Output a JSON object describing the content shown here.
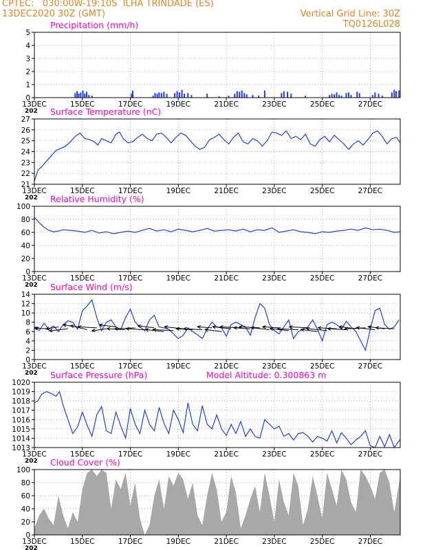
{
  "header": {
    "line1_left": "CPTEC:   030:00W-19:10S  ILHA TRINDADE (ES)",
    "line2_left": "13DEC2020 30Z (GMT)",
    "line1_right": "Vertical Grid Line: 30Z",
    "line2_right": "TQ0126L028"
  },
  "x_axis": {
    "ticks": [
      "13DEC",
      "15DEC",
      "17DEC",
      "19DEC",
      "21DEC",
      "23DEC",
      "25DEC",
      "27DEC"
    ],
    "year_label": "202",
    "range_days": [
      0,
      15.25
    ]
  },
  "colors": {
    "title": "#ff00c8",
    "header": "#e8821e",
    "series": "#1e3cff",
    "wind_arrow": "#000000",
    "cloud": "#a8a8a8"
  },
  "chart_data": [
    {
      "id": "precipitation",
      "type": "bar",
      "title": "Precipitation (mm/h)",
      "ylim": [
        0,
        5
      ],
      "yticks": [
        0,
        1,
        2,
        3,
        4,
        5
      ],
      "x": [
        1.7,
        1.78,
        1.85,
        1.93,
        2.02,
        2.1,
        2.18,
        2.27,
        2.4,
        4.05,
        4.1,
        4.95,
        5.03,
        5.12,
        5.2,
        5.3,
        5.4,
        5.52,
        5.85,
        5.95,
        6.05,
        6.15,
        6.25,
        6.4,
        6.55,
        7.2,
        7.7,
        8.1,
        8.35,
        8.45,
        8.55,
        8.65,
        8.75,
        8.85,
        9.1,
        9.35,
        9.6,
        10.3,
        10.4,
        10.55,
        10.7,
        11.3,
        12.3,
        12.4,
        12.5,
        12.6,
        12.7,
        12.8,
        13.0,
        13.1,
        13.2,
        13.45,
        13.55,
        14.1,
        14.2,
        14.35,
        14.5,
        14.9,
        15.0,
        15.08,
        15.2
      ],
      "values": [
        0.35,
        0.5,
        0.3,
        0.4,
        0.55,
        0.3,
        0.45,
        0.2,
        0.15,
        0.3,
        0.55,
        0.15,
        0.35,
        0.3,
        0.4,
        0.35,
        0.45,
        0.3,
        0.35,
        0.5,
        0.4,
        0.6,
        0.3,
        0.35,
        0.2,
        0.3,
        0.1,
        0.15,
        0.3,
        0.5,
        0.45,
        0.55,
        0.35,
        0.25,
        0.2,
        0.15,
        0.55,
        0.35,
        0.5,
        0.45,
        0.3,
        0.15,
        0.2,
        0.3,
        0.25,
        0.4,
        0.2,
        0.15,
        0.35,
        0.4,
        0.2,
        0.45,
        0.35,
        0.2,
        0.4,
        0.3,
        0.15,
        0.4,
        0.6,
        0.5,
        0.55
      ]
    },
    {
      "id": "temperature",
      "type": "line",
      "title": "Surface Temperature (nC)",
      "ylim": [
        21,
        27
      ],
      "yticks": [
        21,
        22,
        23,
        24,
        25,
        26,
        27
      ],
      "x": [
        0,
        0.15,
        0.3,
        0.5,
        0.7,
        0.9,
        1.1,
        1.3,
        1.5,
        1.7,
        1.9,
        2.1,
        2.3,
        2.5,
        2.65,
        2.8,
        3.0,
        3.2,
        3.4,
        3.55,
        3.7,
        3.9,
        4.1,
        4.3,
        4.5,
        4.7,
        4.9,
        5.1,
        5.3,
        5.5,
        5.7,
        5.9,
        6.1,
        6.3,
        6.5,
        6.7,
        6.9,
        7.1,
        7.3,
        7.5,
        7.7,
        7.9,
        8.1,
        8.3,
        8.5,
        8.7,
        8.9,
        9.1,
        9.3,
        9.5,
        9.7,
        9.9,
        10.1,
        10.3,
        10.5,
        10.7,
        10.9,
        11.1,
        11.3,
        11.5,
        11.7,
        11.9,
        12.1,
        12.3,
        12.5,
        12.7,
        12.9,
        13.1,
        13.3,
        13.5,
        13.7,
        13.9,
        14.1,
        14.3,
        14.5,
        14.7,
        14.9,
        15.1,
        15.25
      ],
      "values": [
        21.3,
        22.3,
        22.6,
        23.1,
        23.6,
        24.1,
        24.3,
        24.5,
        24.9,
        25.4,
        25.7,
        25.2,
        25.1,
        24.9,
        24.6,
        25.2,
        25.0,
        24.8,
        25.6,
        25.8,
        25.2,
        24.8,
        24.9,
        25.3,
        25.6,
        25.2,
        25.0,
        25.6,
        25.7,
        25.3,
        24.8,
        25.3,
        25.7,
        25.5,
        25.0,
        24.5,
        24.2,
        24.4,
        25.1,
        25.3,
        25.6,
        25.1,
        24.7,
        25.3,
        25.7,
        24.9,
        24.7,
        25.2,
        25.0,
        24.5,
        25.0,
        25.8,
        25.7,
        25.5,
        25.9,
        25.2,
        25.4,
        25.1,
        25.6,
        24.7,
        24.5,
        25.1,
        25.4,
        24.9,
        25.5,
        25.1,
        24.7,
        24.2,
        24.7,
        25.0,
        24.6,
        25.1,
        25.7,
        25.9,
        25.4,
        24.7,
        25.2,
        25.3,
        24.8
      ]
    },
    {
      "id": "humidity",
      "type": "line",
      "title": "Relative Humidity (%)",
      "ylim": [
        0,
        100
      ],
      "yticks": [
        0,
        20,
        40,
        60,
        80,
        100
      ],
      "x": [
        0,
        0.2,
        0.4,
        0.6,
        0.8,
        1.0,
        1.2,
        1.5,
        1.8,
        2.1,
        2.4,
        2.7,
        3.0,
        3.3,
        3.6,
        3.9,
        4.2,
        4.5,
        4.8,
        5.1,
        5.4,
        5.7,
        6.0,
        6.3,
        6.6,
        6.9,
        7.2,
        7.5,
        7.8,
        8.1,
        8.4,
        8.7,
        9.0,
        9.3,
        9.6,
        9.9,
        10.2,
        10.5,
        10.8,
        11.1,
        11.4,
        11.7,
        12.0,
        12.3,
        12.6,
        12.9,
        13.2,
        13.5,
        13.8,
        14.1,
        14.4,
        14.7,
        15.0,
        15.25
      ],
      "values": [
        83,
        75,
        68,
        63,
        61,
        62,
        64,
        63,
        62,
        60,
        63,
        59,
        61,
        58,
        60,
        62,
        60,
        63,
        66,
        62,
        64,
        61,
        65,
        63,
        61,
        63,
        66,
        62,
        63,
        64,
        62,
        65,
        61,
        64,
        63,
        67,
        60,
        62,
        64,
        61,
        60,
        58,
        61,
        60,
        62,
        63,
        65,
        63,
        67,
        64,
        65,
        63,
        60,
        61
      ]
    },
    {
      "id": "wind",
      "type": "line",
      "title": "Surface Wind (m/s)",
      "ylim": [
        0,
        14
      ],
      "yticks": [
        0,
        2,
        4,
        6,
        8,
        10,
        12,
        14
      ],
      "x": [
        0,
        0.2,
        0.4,
        0.6,
        0.8,
        1.0,
        1.2,
        1.4,
        1.6,
        1.8,
        2.0,
        2.2,
        2.4,
        2.6,
        2.8,
        3.0,
        3.2,
        3.4,
        3.6,
        3.8,
        4.0,
        4.2,
        4.4,
        4.6,
        4.8,
        5.0,
        5.2,
        5.4,
        5.6,
        5.8,
        6.0,
        6.2,
        6.4,
        6.6,
        6.8,
        7.0,
        7.2,
        7.4,
        7.6,
        7.8,
        8.0,
        8.2,
        8.4,
        8.6,
        8.8,
        9.0,
        9.2,
        9.4,
        9.6,
        9.8,
        10.0,
        10.2,
        10.4,
        10.6,
        10.8,
        11.0,
        11.2,
        11.4,
        11.6,
        11.8,
        12.0,
        12.2,
        12.4,
        12.6,
        12.8,
        13.0,
        13.2,
        13.4,
        13.6,
        13.8,
        14.0,
        14.2,
        14.4,
        14.6,
        14.8,
        15.0,
        15.2
      ],
      "values": [
        7.0,
        6.2,
        7.8,
        6.5,
        7.2,
        6.0,
        7.5,
        8.3,
        8.0,
        6.5,
        10.5,
        11.5,
        12.8,
        9.0,
        6.2,
        8.0,
        8.5,
        7.0,
        6.5,
        9.0,
        10.8,
        8.0,
        7.0,
        6.2,
        8.5,
        9.5,
        7.0,
        6.8,
        6.5,
        5.5,
        4.5,
        5.2,
        6.8,
        6.0,
        5.3,
        4.5,
        6.5,
        8.0,
        7.0,
        6.8,
        5.0,
        7.5,
        8.0,
        7.5,
        7.0,
        5.2,
        9.0,
        12.0,
        11.0,
        7.5,
        6.2,
        5.5,
        7.0,
        8.5,
        4.5,
        6.0,
        6.5,
        7.0,
        8.5,
        6.5,
        4.0,
        7.5,
        8.0,
        7.5,
        6.5,
        8.2,
        7.0,
        6.0,
        4.0,
        2.0,
        6.5,
        10.5,
        11.0,
        7.5,
        6.5,
        7.0,
        8.5
      ]
    },
    {
      "id": "wind_vectors",
      "type": "quiver",
      "x": [
        0.2,
        0.6,
        1.0,
        1.4,
        1.8,
        2.2,
        2.6,
        3.0,
        3.4,
        3.8,
        4.2,
        4.6,
        5.0,
        5.4,
        5.8,
        6.2,
        6.6,
        7.0,
        7.4,
        7.8,
        8.2,
        8.6,
        9.0,
        9.4,
        9.8,
        10.2,
        10.6,
        11.0,
        11.4,
        11.8,
        12.2,
        12.6,
        13.0,
        13.4,
        13.8,
        14.2,
        14.6,
        15.0
      ],
      "y": [
        6.8,
        6.6,
        7.0,
        6.6,
        7.0,
        6.4,
        6.8,
        6.6,
        7.0,
        6.4,
        6.8,
        6.4,
        6.8,
        6.0,
        6.2,
        6.6,
        6.4,
        6.4,
        6.8,
        6.0,
        6.6,
        6.8,
        6.6,
        6.8,
        6.4,
        6.8,
        6.2,
        6.4,
        6.8,
        6.0,
        6.2,
        6.6,
        6.4,
        6.6,
        6.8,
        6.4,
        6.6,
        6.6
      ],
      "u": [
        -6,
        -7,
        -6,
        -9,
        -7,
        -8,
        -9,
        -7,
        -8,
        -9,
        -10,
        -9,
        -8,
        -9,
        -10,
        -9,
        -8,
        -9,
        -7,
        -8,
        -9,
        -10,
        -8,
        -10,
        -9,
        -8,
        -9,
        -10,
        -9,
        -8,
        -10,
        -9,
        -9,
        -8,
        -10,
        -9,
        -8,
        -9
      ],
      "v": [
        0.5,
        0.3,
        -1,
        -1,
        1,
        2,
        0.5,
        -1,
        1,
        0.5,
        -0.5,
        0.5,
        1,
        1,
        0.5,
        1,
        0.5,
        0.5,
        0.5,
        1,
        1,
        0.5,
        0.5,
        0.5,
        1,
        0.5,
        1,
        0.5,
        0.5,
        1,
        1,
        0.5,
        0.5,
        1,
        -0.5,
        1,
        1,
        0.5
      ]
    },
    {
      "id": "pressure",
      "type": "line",
      "title": "Surface Pressure (hPa)",
      "annotation": "Model Altitude: 0.300863 m",
      "ylim": [
        1013,
        1020
      ],
      "yticks": [
        1013,
        1014,
        1015,
        1016,
        1017,
        1018,
        1019,
        1020
      ],
      "x": [
        0,
        0.15,
        0.3,
        0.5,
        0.7,
        0.9,
        1.05,
        1.2,
        1.4,
        1.6,
        1.8,
        2.0,
        2.2,
        2.4,
        2.6,
        2.8,
        3.0,
        3.2,
        3.4,
        3.6,
        3.8,
        4.0,
        4.2,
        4.4,
        4.6,
        4.8,
        5.0,
        5.2,
        5.4,
        5.6,
        5.8,
        6.0,
        6.2,
        6.4,
        6.6,
        6.8,
        7.0,
        7.2,
        7.4,
        7.6,
        7.8,
        8.0,
        8.2,
        8.4,
        8.6,
        8.8,
        9.0,
        9.2,
        9.4,
        9.6,
        9.8,
        10.0,
        10.2,
        10.4,
        10.6,
        10.8,
        11.0,
        11.2,
        11.4,
        11.6,
        11.8,
        12.0,
        12.2,
        12.4,
        12.6,
        12.8,
        13.0,
        13.2,
        13.4,
        13.6,
        13.8,
        14.0,
        14.2,
        14.4,
        14.6,
        14.8,
        15.0,
        15.25
      ],
      "values": [
        1017.8,
        1018.0,
        1018.7,
        1019.0,
        1018.8,
        1018.5,
        1019.0,
        1017.5,
        1016.0,
        1014.5,
        1015.2,
        1016.8,
        1015.4,
        1014.2,
        1016.5,
        1017.4,
        1014.8,
        1014.5,
        1016.8,
        1015.3,
        1014.0,
        1017.2,
        1015.5,
        1014.5,
        1017.0,
        1015.5,
        1014.8,
        1017.3,
        1015.6,
        1014.5,
        1017.0,
        1016.0,
        1014.6,
        1017.8,
        1015.5,
        1014.8,
        1017.5,
        1015.5,
        1015.0,
        1016.5,
        1015.0,
        1014.3,
        1015.5,
        1014.5,
        1015.8,
        1014.2,
        1015.0,
        1014.2,
        1014.0,
        1016.0,
        1015.5,
        1015.0,
        1015.3,
        1014.2,
        1014.5,
        1013.8,
        1014.5,
        1014.6,
        1014.2,
        1013.6,
        1014.2,
        1014.0,
        1013.7,
        1014.8,
        1013.5,
        1014.6,
        1014.0,
        1013.3,
        1013.8,
        1014.2,
        1014.8,
        1013.2,
        1013.0,
        1014.2,
        1013.1,
        1014.4,
        1013.0,
        1013.9
      ]
    },
    {
      "id": "cloud",
      "type": "area",
      "title": "Cloud Cover (%)",
      "ylim": [
        0,
        100
      ],
      "yticks": [
        0,
        20,
        40,
        60,
        80,
        100
      ],
      "x": [
        0,
        0.2,
        0.4,
        0.6,
        0.8,
        1.0,
        1.2,
        1.4,
        1.6,
        1.8,
        2.0,
        2.2,
        2.4,
        2.6,
        2.8,
        3.0,
        3.2,
        3.4,
        3.6,
        3.8,
        4.0,
        4.2,
        4.4,
        4.6,
        4.8,
        5.0,
        5.2,
        5.4,
        5.6,
        5.8,
        6.0,
        6.2,
        6.4,
        6.6,
        6.8,
        7.0,
        7.2,
        7.4,
        7.6,
        7.8,
        8.0,
        8.2,
        8.4,
        8.6,
        8.8,
        9.0,
        9.2,
        9.4,
        9.6,
        9.8,
        10.0,
        10.2,
        10.4,
        10.6,
        10.8,
        11.0,
        11.2,
        11.4,
        11.6,
        11.8,
        12.0,
        12.2,
        12.4,
        12.6,
        12.8,
        13.0,
        13.2,
        13.4,
        13.6,
        13.8,
        14.0,
        14.2,
        14.4,
        14.6,
        14.8,
        15.0,
        15.25
      ],
      "values": [
        10,
        30,
        40,
        25,
        15,
        60,
        30,
        10,
        35,
        20,
        70,
        95,
        100,
        90,
        100,
        95,
        40,
        85,
        70,
        95,
        45,
        80,
        25,
        0,
        15,
        60,
        85,
        40,
        90,
        75,
        95,
        85,
        55,
        80,
        30,
        15,
        60,
        95,
        70,
        20,
        35,
        90,
        65,
        10,
        30,
        55,
        75,
        35,
        95,
        60,
        20,
        85,
        50,
        30,
        95,
        75,
        15,
        40,
        90,
        60,
        25,
        95,
        70,
        45,
        100,
        85,
        50,
        35,
        100,
        90,
        75,
        55,
        95,
        100,
        80,
        35,
        90
      ]
    }
  ]
}
